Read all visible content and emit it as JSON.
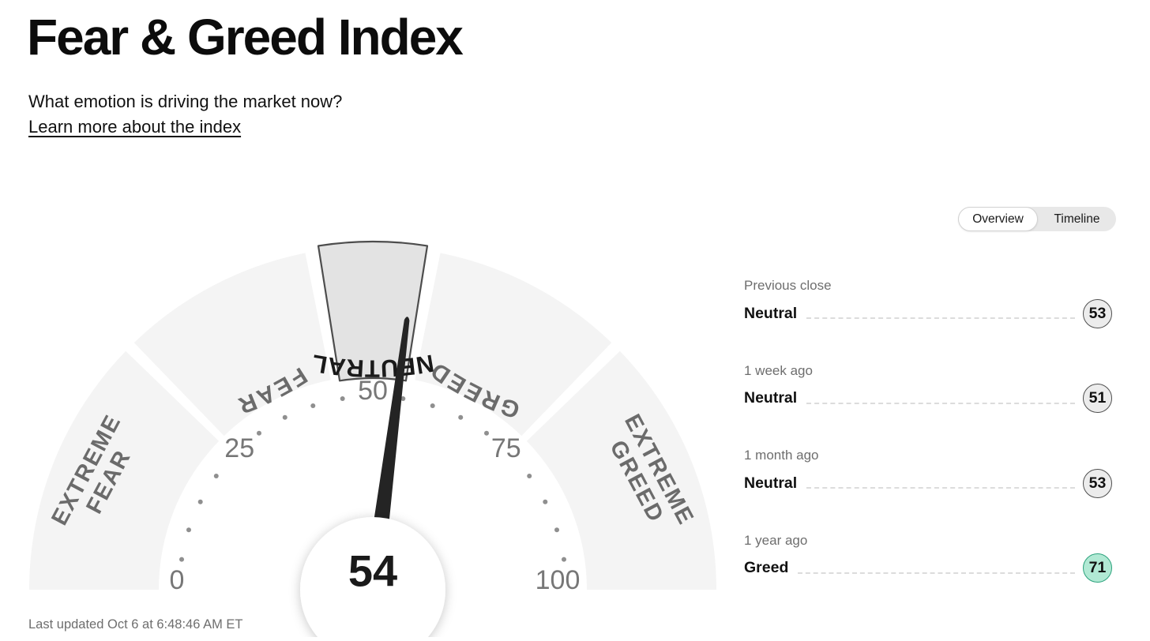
{
  "page": {
    "title": "Fear & Greed Index",
    "subtitle": "What emotion is driving the market now?",
    "learn_more": "Learn more about the index",
    "last_updated": "Last updated Oct 6 at 6:48:46 AM ET"
  },
  "tabs": {
    "overview": "Overview",
    "timeline": "Timeline",
    "selected": "Overview"
  },
  "chart_data": {
    "type": "gauge",
    "title": "Fear & Greed Index",
    "min": 0,
    "max": 100,
    "value": 54,
    "value_label": "54",
    "current_rating": "NEUTRAL",
    "tick_labels": [
      0,
      25,
      50,
      75,
      100
    ],
    "dot_step": 5,
    "segments": [
      {
        "label": "EXTREME FEAR",
        "from": 0,
        "to": 25,
        "style": "normal",
        "label_style": "rotated",
        "lines": [
          "EXTREME",
          "FEAR"
        ]
      },
      {
        "label": "FEAR",
        "from": 25,
        "to": 45,
        "style": "normal",
        "label_style": "arc",
        "lines": [
          "FEAR"
        ]
      },
      {
        "label": "NEUTRAL",
        "from": 45,
        "to": 55,
        "style": "highlight",
        "label_style": "arc",
        "lines": [
          "NEUTRAL"
        ]
      },
      {
        "label": "GREED",
        "from": 55,
        "to": 75,
        "style": "normal",
        "label_style": "arc",
        "lines": [
          "GREED"
        ]
      },
      {
        "label": "EXTREME GREED",
        "from": 75,
        "to": 100,
        "style": "normal",
        "label_style": "rotated",
        "lines": [
          "EXTREME",
          "GREED"
        ]
      }
    ],
    "history": [
      {
        "label": "Previous close",
        "rating": "Neutral",
        "value": 53,
        "tone": "neutral"
      },
      {
        "label": "1 week ago",
        "rating": "Neutral",
        "value": 51,
        "tone": "neutral"
      },
      {
        "label": "1 month ago",
        "rating": "Neutral",
        "value": 53,
        "tone": "neutral"
      },
      {
        "label": "1 year ago",
        "rating": "Greed",
        "value": 71,
        "tone": "greed"
      }
    ]
  },
  "colors": {
    "segment_fill": "#f4f4f4",
    "highlight_fill": "#e3e3e3",
    "highlight_stroke": "#4d4d4d",
    "segment_label": "#6b6b6b",
    "highlight_label": "#1a1a1a",
    "tick_numeral": "#777777",
    "dot": "#8f8f8f",
    "needle": "#242424",
    "value_text": "#1a1a1a",
    "badge_neutral_bg": "#ececec",
    "badge_neutral_border": "#4f4f4f",
    "badge_greed_bg": "#b1e9d4",
    "badge_greed_border": "#2ba27c"
  }
}
